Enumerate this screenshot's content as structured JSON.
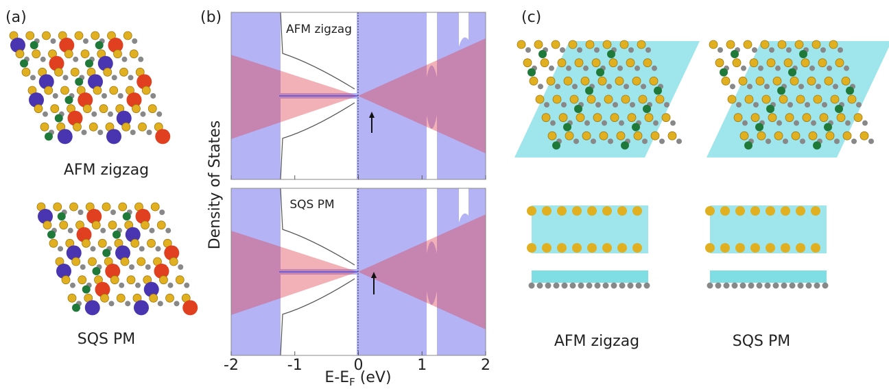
{
  "panel_a": {
    "label": "(a)",
    "captions": [
      "AFM zigzag",
      "SQS PM"
    ]
  },
  "panel_b": {
    "label": "(b)",
    "y_label": "Density of States",
    "x_label": [
      "E-E",
      "F",
      " (eV)"
    ],
    "xlim": [
      -2,
      2
    ],
    "xticks": [
      -2,
      -1,
      0,
      1,
      2
    ],
    "subplots": [
      "AFM zigzag",
      "SQS PM"
    ]
  },
  "panel_c": {
    "label": "(c)",
    "captions": [
      "AFM zigzag",
      "SQS PM"
    ]
  }
}
